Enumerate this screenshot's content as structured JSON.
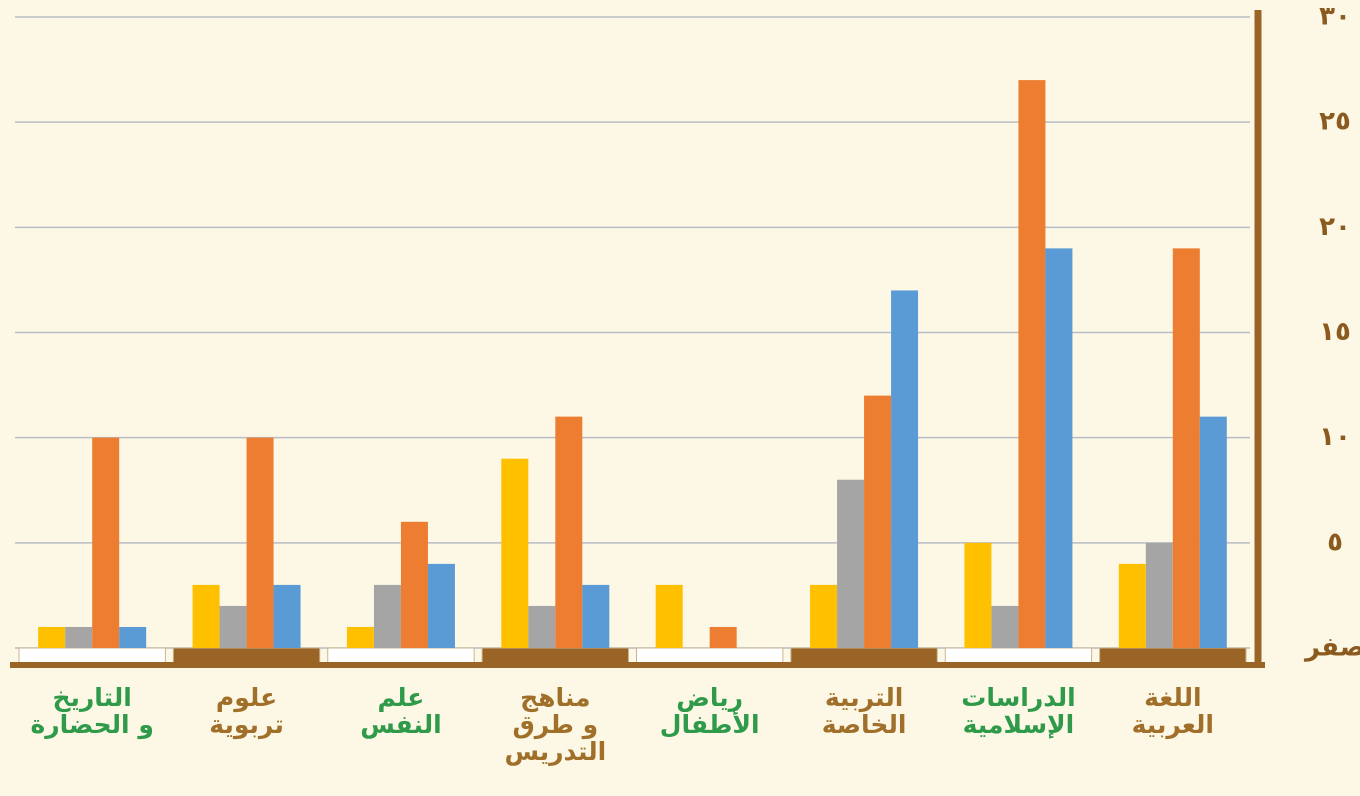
{
  "chart_data": {
    "type": "bar",
    "categories": [
      "اللغة\nالعربية",
      "الدراسات\nالإسلامية",
      "التربية\nالخاصة",
      "رياض\nالأطفال",
      "مناهج\nو طرق\nالتدريس",
      "علم\nالنفس",
      "علوم\nتربوية",
      "التاريخ\nو الحضارة"
    ],
    "category_direction": "rtl",
    "label_colors": [
      "#a0702a",
      "#2e9a4a",
      "#a0702a",
      "#2e9a4a",
      "#a0702a",
      "#2e9a4a",
      "#a0702a",
      "#2e9a4a"
    ],
    "series": [
      {
        "color": "#ffc000",
        "values": [
          4,
          5,
          3,
          3,
          9,
          1,
          3,
          1
        ]
      },
      {
        "color": "#a5a5a5",
        "values": [
          5,
          2,
          8,
          0,
          2,
          3,
          2,
          1
        ]
      },
      {
        "color": "#ed7d31",
        "values": [
          19,
          27,
          12,
          1,
          11,
          6,
          10,
          10
        ]
      },
      {
        "color": "#5b9bd5",
        "values": [
          11,
          19,
          17,
          0,
          3,
          4,
          3,
          1
        ]
      }
    ],
    "ylim": [
      0,
      30
    ],
    "yticks": [
      {
        "value": 0,
        "label": "صفر"
      },
      {
        "value": 5,
        "label": "٥"
      },
      {
        "value": 10,
        "label": "١٠"
      },
      {
        "value": 15,
        "label": "١٥"
      },
      {
        "value": 20,
        "label": "٢٠"
      },
      {
        "value": 25,
        "label": "٢٥"
      },
      {
        "value": 30,
        "label": "٣٠"
      }
    ],
    "grid": true
  }
}
